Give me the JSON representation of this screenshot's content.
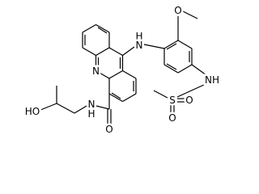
{
  "atoms": {
    "acridine_n": "N",
    "amine_h": "H",
    "amine_n": "N",
    "methoxy_o": "O",
    "sulfonamide_nh": "NH",
    "sulfur": "S",
    "sulfonyl_o_1": "O",
    "sulfonyl_o_2": "O",
    "amide_n": "N",
    "amide_h": "H",
    "amide_o": "O",
    "hydroxyl": "HO"
  }
}
